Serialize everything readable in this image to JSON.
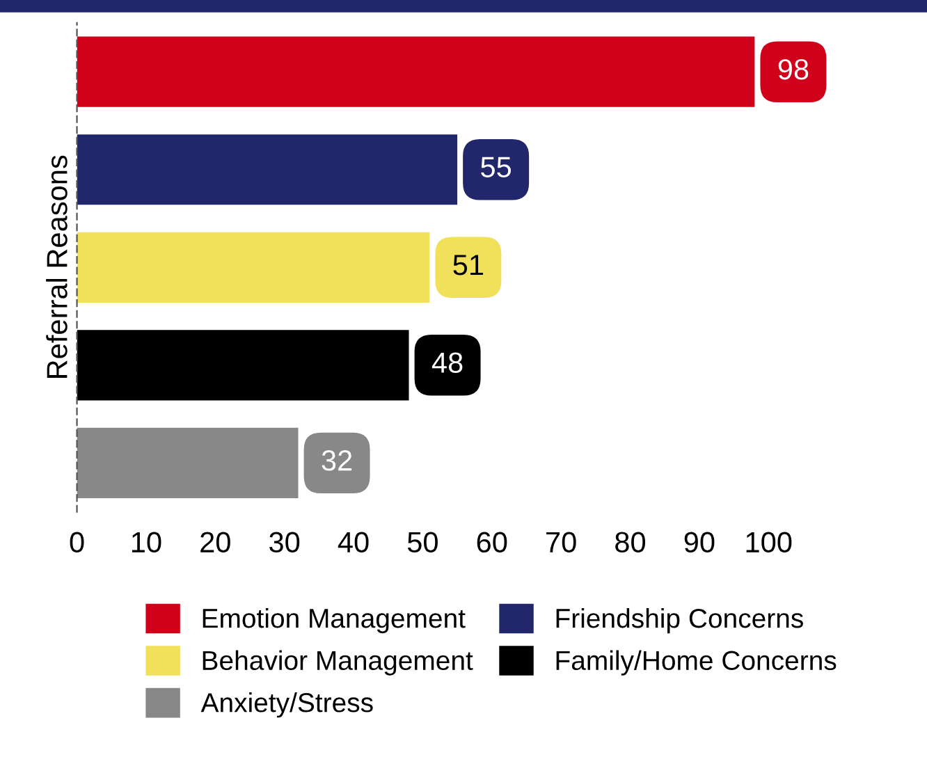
{
  "chart_data": {
    "type": "bar",
    "orientation": "horizontal",
    "ylabel": "Referral Reasons",
    "categories": [
      null,
      null,
      null,
      null,
      null
    ],
    "series": [
      {
        "name": "Emotion Management",
        "color": "#d0021b",
        "values": [
          98,
          null,
          null,
          null,
          null
        ]
      },
      {
        "name": "Friendship Concerns",
        "color": "#22276b",
        "values": [
          null,
          55,
          null,
          null,
          null
        ]
      },
      {
        "name": "Behavior Management",
        "color": "#f0e05a",
        "values": [
          null,
          null,
          51,
          null,
          null
        ]
      },
      {
        "name": "Family/Home Concerns",
        "color": "#000000",
        "values": [
          null,
          null,
          null,
          48,
          null
        ]
      },
      {
        "name": "Anxiety/Stress",
        "color": "#888888",
        "values": [
          null,
          null,
          null,
          null,
          32
        ]
      }
    ],
    "xlim": [
      0,
      100
    ],
    "xticks": [
      0,
      10,
      20,
      30,
      40,
      50,
      60,
      70,
      80,
      90,
      100
    ],
    "tick_labels": "x",
    "data_labels": true,
    "legend": "bottom"
  }
}
